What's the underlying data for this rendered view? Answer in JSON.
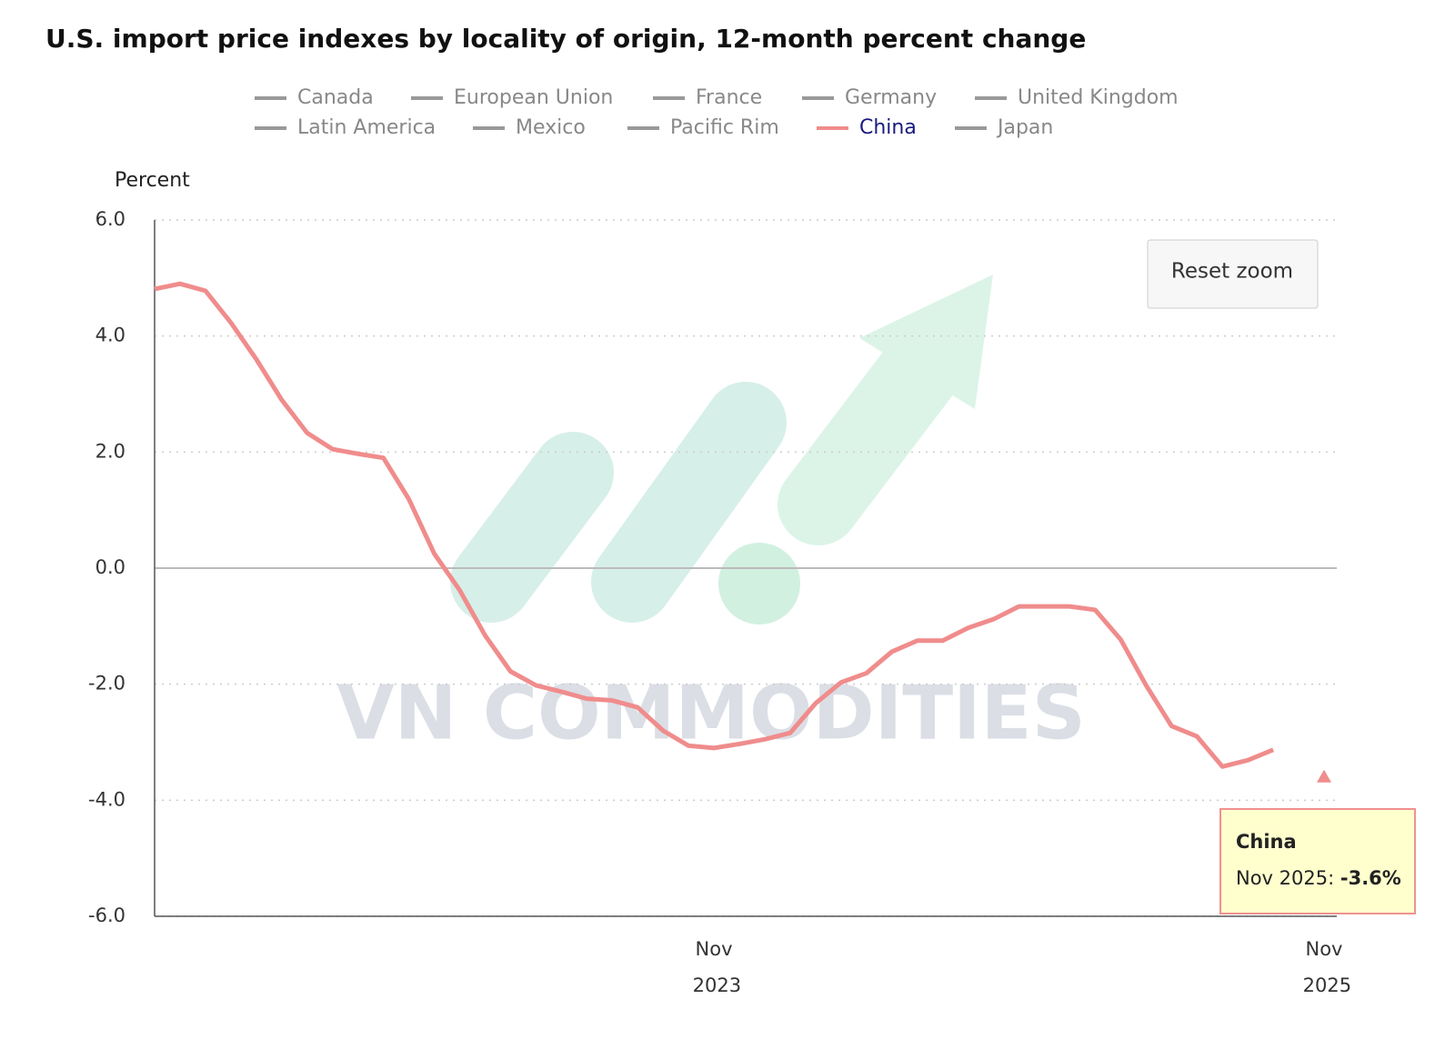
{
  "chart_data": {
    "type": "line",
    "title": "U.S. import price indexes by locality of origin, 12-month percent change",
    "y_label": "Percent",
    "watermark": "VN COMMODITIES",
    "reset_button": "Reset zoom",
    "categories": [
      null,
      null,
      null,
      null,
      null,
      null,
      null,
      null,
      null,
      null,
      null,
      null,
      null,
      null,
      null,
      null,
      null,
      null,
      null,
      null,
      null,
      null,
      "Nov 2023",
      null,
      null,
      null,
      null,
      null,
      null,
      null,
      null,
      null,
      null,
      null,
      null,
      null,
      null,
      null,
      null,
      null,
      null,
      null,
      null,
      null,
      null,
      null,
      "Nov 2025"
    ],
    "series": [
      {
        "name": "Canada",
        "color": "#999999"
      },
      {
        "name": "European Union",
        "color": "#999999"
      },
      {
        "name": "France",
        "color": "#999999"
      },
      {
        "name": "Germany",
        "color": "#999999"
      },
      {
        "name": "United Kingdom",
        "color": "#999999"
      },
      {
        "name": "Latin America",
        "color": "#999999"
      },
      {
        "name": "Mexico",
        "color": "#999999"
      },
      {
        "name": "Pacific Rim",
        "color": "#999999"
      },
      {
        "name": "China",
        "color": "#f08c8c",
        "label_color": "#1a1a80",
        "values": [
          4.81,
          4.9,
          4.78,
          4.23,
          3.6,
          2.9,
          2.33,
          2.05,
          1.97,
          1.9,
          1.19,
          0.25,
          -0.38,
          -1.16,
          -1.78,
          -2.02,
          -2.13,
          -2.25,
          -2.28,
          -2.4,
          -2.8,
          -3.06,
          -3.1,
          -3.03,
          -2.95,
          -2.84,
          -2.33,
          -1.97,
          -1.81,
          -1.44,
          -1.25,
          -1.25,
          -1.03,
          -0.88,
          -0.66,
          -0.66,
          -0.66,
          -0.72,
          -1.23,
          -2.02,
          -2.72,
          -2.9,
          -3.42,
          -3.31,
          -3.13,
          null,
          -3.6
        ],
        "value_labels": [
          null,
          null,
          null,
          null,
          null,
          null,
          null,
          null,
          null,
          null,
          null,
          null,
          null,
          null,
          null,
          null,
          null,
          null,
          null,
          null,
          null,
          null,
          null,
          null,
          null,
          null,
          null,
          null,
          null,
          null,
          null,
          null,
          null,
          null,
          null,
          null,
          null,
          null,
          null,
          null,
          null,
          null,
          null,
          null,
          null,
          null,
          "-3.6%"
        ]
      },
      {
        "name": "Japan",
        "color": "#999999"
      }
    ],
    "tooltip": {
      "series": 8,
      "index": 46
    },
    "ylim": [
      -6,
      6
    ],
    "yticks": [
      {
        "value": -6,
        "label": "-6.0"
      },
      {
        "value": -4,
        "label": "-4.0"
      },
      {
        "value": -2,
        "label": "-2.0"
      },
      {
        "value": 0,
        "label": "0.0"
      },
      {
        "value": 2,
        "label": "2.0"
      },
      {
        "value": 4,
        "label": "4.0"
      },
      {
        "value": 6,
        "label": "6.0"
      }
    ],
    "grid": true
  }
}
